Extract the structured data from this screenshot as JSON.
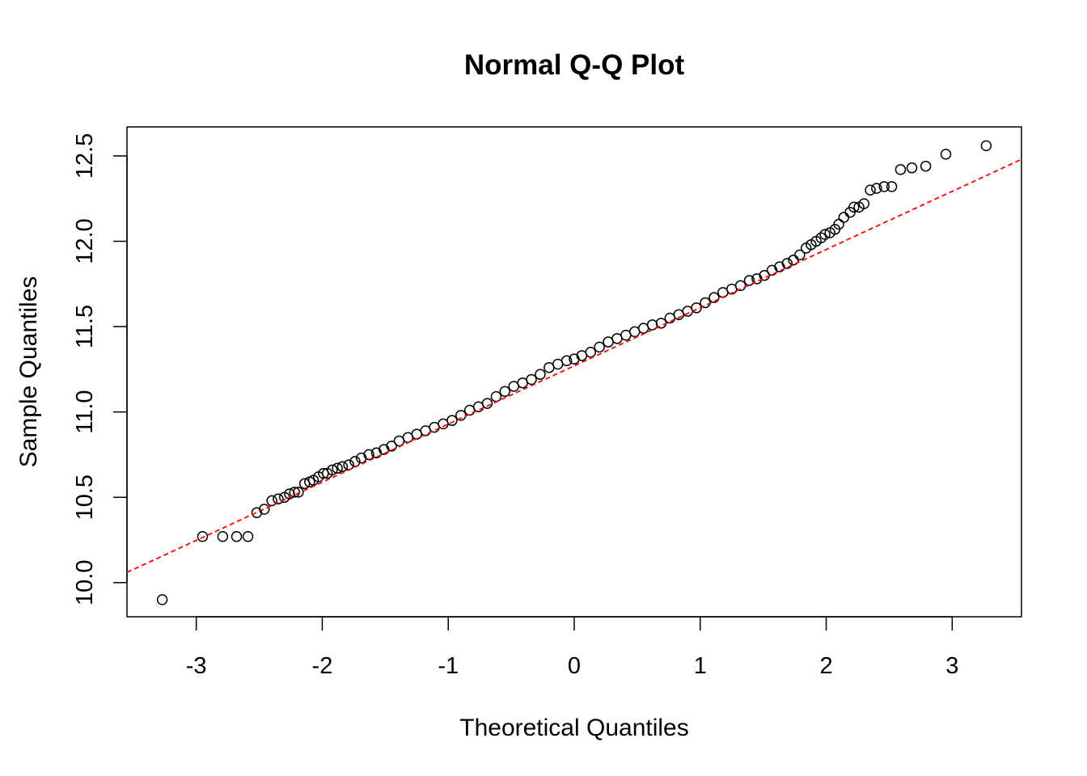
{
  "chart_data": {
    "type": "scatter",
    "title": "Normal Q-Q Plot",
    "xlabel": "Theoretical Quantiles",
    "ylabel": "Sample Quantiles",
    "xlim": [
      -3.55,
      3.55
    ],
    "ylim": [
      9.8,
      12.67
    ],
    "x_ticks": [
      -3,
      -2,
      -1,
      0,
      1,
      2,
      3
    ],
    "x_tick_labels": [
      "-3",
      "-2",
      "-1",
      "0",
      "1",
      "2",
      "3"
    ],
    "y_ticks": [
      10.0,
      10.5,
      11.0,
      11.5,
      12.0,
      12.5
    ],
    "y_tick_labels": [
      "10.0",
      "10.5",
      "11.0",
      "11.5",
      "12.0",
      "12.5"
    ],
    "grid": false,
    "legend": "none",
    "point_style": "open circle",
    "point_color": "#000000",
    "series": [
      {
        "kind": "points",
        "x": [
          -3.27,
          -2.95,
          -2.79,
          -2.68,
          -2.59,
          -2.52,
          -2.46,
          -2.4,
          -2.35,
          -2.3,
          -2.26,
          -2.22,
          -2.19,
          -2.14,
          -2.1,
          -2.07,
          -2.03,
          -1.99,
          -1.96,
          -1.92,
          -1.88,
          -1.84,
          -1.79,
          -1.74,
          -1.69,
          -1.63,
          -1.57,
          -1.51,
          -1.45,
          -1.39,
          -1.32,
          -1.25,
          -1.18,
          -1.11,
          -1.04,
          -0.97,
          -0.9,
          -0.83,
          -0.76,
          -0.69,
          -0.62,
          -0.55,
          -0.48,
          -0.41,
          -0.34,
          -0.27,
          -0.2,
          -0.13,
          -0.06,
          0.0,
          0.06,
          0.13,
          0.2,
          0.27,
          0.34,
          0.41,
          0.48,
          0.55,
          0.62,
          0.69,
          0.76,
          0.83,
          0.9,
          0.97,
          1.04,
          1.11,
          1.18,
          1.25,
          1.32,
          1.39,
          1.45,
          1.51,
          1.57,
          1.63,
          1.69,
          1.74,
          1.79,
          1.84,
          1.88,
          1.92,
          1.96,
          1.99,
          2.03,
          2.07,
          2.1,
          2.14,
          2.19,
          2.22,
          2.26,
          2.3,
          2.35,
          2.4,
          2.46,
          2.52,
          2.59,
          2.68,
          2.79,
          2.95,
          3.27
        ],
        "y": [
          9.9,
          10.27,
          10.27,
          10.27,
          10.27,
          10.41,
          10.43,
          10.48,
          10.49,
          10.5,
          10.52,
          10.53,
          10.53,
          10.58,
          10.59,
          10.6,
          10.62,
          10.64,
          10.64,
          10.66,
          10.67,
          10.68,
          10.69,
          10.71,
          10.73,
          10.75,
          10.76,
          10.78,
          10.8,
          10.83,
          10.85,
          10.87,
          10.89,
          10.91,
          10.93,
          10.95,
          10.98,
          11.01,
          11.03,
          11.05,
          11.09,
          11.12,
          11.15,
          11.17,
          11.19,
          11.22,
          11.26,
          11.28,
          11.3,
          11.31,
          11.33,
          11.35,
          11.38,
          11.41,
          11.43,
          11.45,
          11.47,
          11.49,
          11.51,
          11.52,
          11.55,
          11.57,
          11.59,
          11.61,
          11.64,
          11.67,
          11.7,
          11.72,
          11.74,
          11.77,
          11.78,
          11.8,
          11.83,
          11.85,
          11.87,
          11.89,
          11.92,
          11.96,
          11.98,
          12.0,
          12.02,
          12.04,
          12.05,
          12.07,
          12.1,
          12.14,
          12.17,
          12.2,
          12.2,
          12.22,
          12.3,
          12.31,
          12.32,
          12.32,
          12.42,
          12.43,
          12.44,
          12.51,
          12.56
        ]
      },
      {
        "kind": "reference-line",
        "line_style": "dashed",
        "color": "#ff0000",
        "x": [
          -3.55,
          3.55
        ],
        "y": [
          10.06,
          12.48
        ]
      }
    ]
  }
}
